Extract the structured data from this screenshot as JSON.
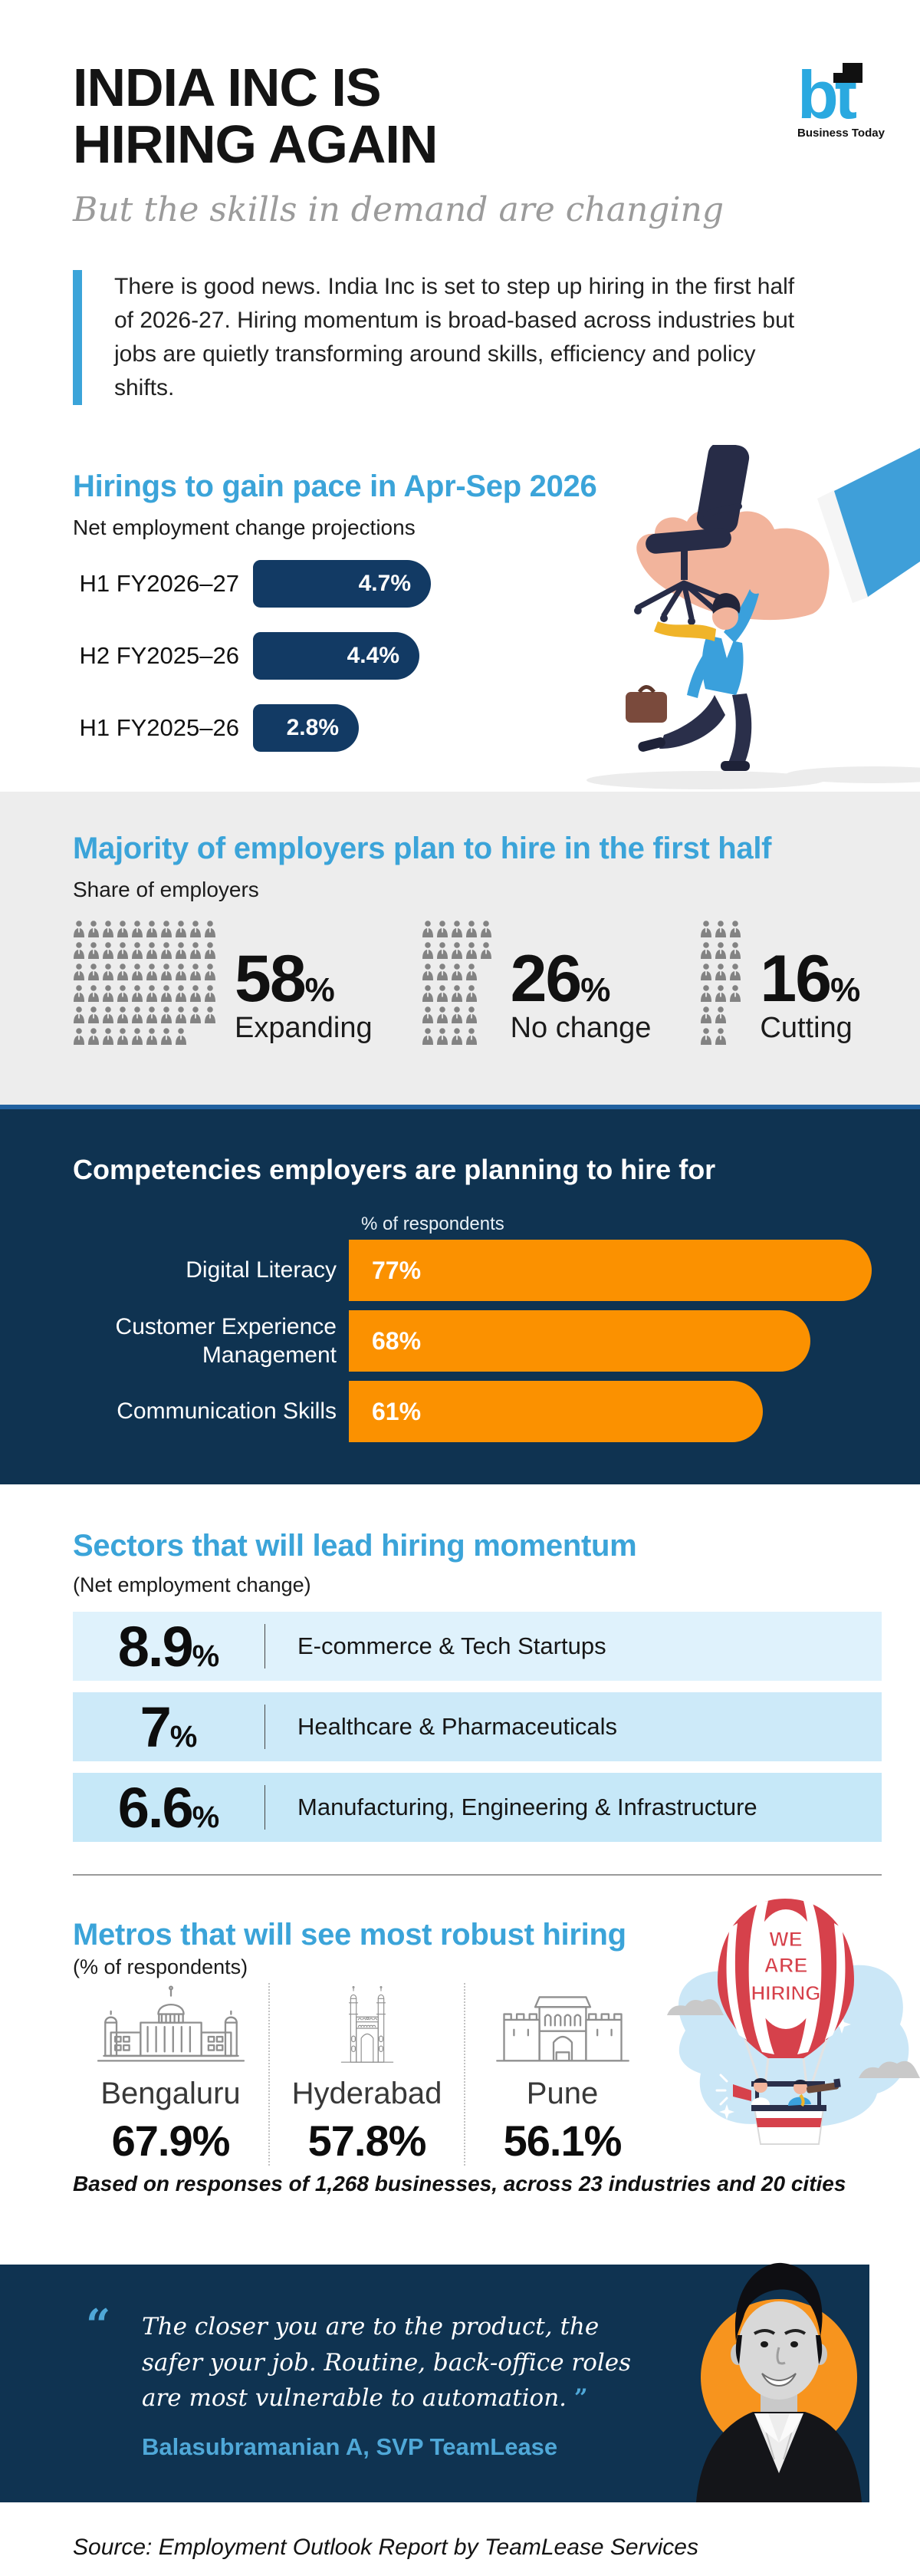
{
  "colors": {
    "accent_blue": "#3BA4D9",
    "navy_panel": "#0F3351",
    "bar_navy": "#123A64",
    "orange": "#FB9100",
    "orange_circle": "#F7941E",
    "gray_band": "#EDEDED",
    "pictogram_gray": "#838383",
    "sector_row_colors": [
      "#DFF2FC",
      "#CDEAF9",
      "#C6E8F8"
    ],
    "quote_blue": "#4FA8D8",
    "balloon_red": "#D6414B"
  },
  "header": {
    "title_line1": "INDIA INC IS",
    "title_line2": "HIRING AGAIN",
    "subtitle": "But the skills in demand are changing",
    "intro": "There is good news. India Inc is set to step up hiring in the first half of 2026-27. Hiring momentum is broad-based across industries but jobs are quietly transforming around skills, efficiency and policy shifts.",
    "logo_mark": "bt",
    "logo_name": "Business Today"
  },
  "chart_data": [
    {
      "type": "bar",
      "title": "Hirings to gain pace in Apr-Sep 2026",
      "subtitle": "Net employment change projections",
      "orientation": "horizontal",
      "categories": [
        "H1 FY2026–27",
        "H2 FY2025–26",
        "H1 FY2025–26"
      ],
      "values": [
        4.7,
        4.4,
        2.8
      ],
      "value_labels": [
        "4.7%",
        "4.4%",
        "2.8%"
      ],
      "xlim": [
        0,
        5
      ],
      "bar_color": "#123A64"
    },
    {
      "type": "pictogram",
      "title": "Majority of employers plan to hire in the first half",
      "subtitle": "Share of employers",
      "icon": "person-icon",
      "icon_color": "#838383",
      "groups": [
        {
          "label": "Expanding",
          "value": 58,
          "display": "58",
          "unit": "%",
          "rows": [
            10,
            10,
            10,
            10,
            10,
            8
          ]
        },
        {
          "label": "No change",
          "value": 26,
          "display": "26",
          "unit": "%",
          "rows": [
            5,
            5,
            4,
            4,
            4,
            4
          ]
        },
        {
          "label": "Cutting",
          "value": 16,
          "display": "16",
          "unit": "%",
          "rows": [
            3,
            3,
            3,
            3,
            2,
            2
          ]
        }
      ]
    },
    {
      "type": "bar",
      "title": "Competencies employers are planning to hire for",
      "axis_label": "% of respondents",
      "orientation": "horizontal",
      "categories": [
        "Digital Literacy",
        "Customer Experience Management",
        "Communication Skills"
      ],
      "values": [
        77,
        68,
        61
      ],
      "value_labels": [
        "77%",
        "68%",
        "61%"
      ],
      "xlim": [
        0,
        85
      ],
      "bar_color": "#FB9100"
    },
    {
      "type": "table",
      "title": "Sectors that will lead hiring momentum",
      "subtitle": "(Net employment change)",
      "rows": [
        {
          "value": "8.9",
          "unit": "%",
          "label": "E-commerce & Tech Startups"
        },
        {
          "value": "7",
          "unit": "%",
          "label": "Healthcare & Pharmaceuticals"
        },
        {
          "value": "6.6",
          "unit": "%",
          "label": "Manufacturing, Engineering & Infrastructure"
        }
      ]
    },
    {
      "type": "pictorial-stat",
      "title": "Metros that will see most robust hiring",
      "subtitle": "(% of respondents)",
      "cities": [
        {
          "name": "Bengaluru",
          "value": "67.9%",
          "icon": "vidhana-soudha-icon"
        },
        {
          "name": "Hyderabad",
          "value": "57.8%",
          "icon": "charminar-icon"
        },
        {
          "name": "Pune",
          "value": "56.1%",
          "icon": "shaniwar-wada-icon"
        }
      ],
      "balloon_lines": [
        "WE",
        "ARE",
        "HIRING"
      ]
    }
  ],
  "footnote": "Based on responses of 1,268 businesses, across 23 industries and 20 cities",
  "quote": {
    "open_mark": "“",
    "close_mark": "”",
    "text": "The closer you are to the product, the safer your job. Routine, back-office roles are most vulnerable to automation.",
    "attribution": "Balasubramanian A, SVP TeamLease"
  },
  "source": "Source: Employment Outlook Report by TeamLease Services"
}
